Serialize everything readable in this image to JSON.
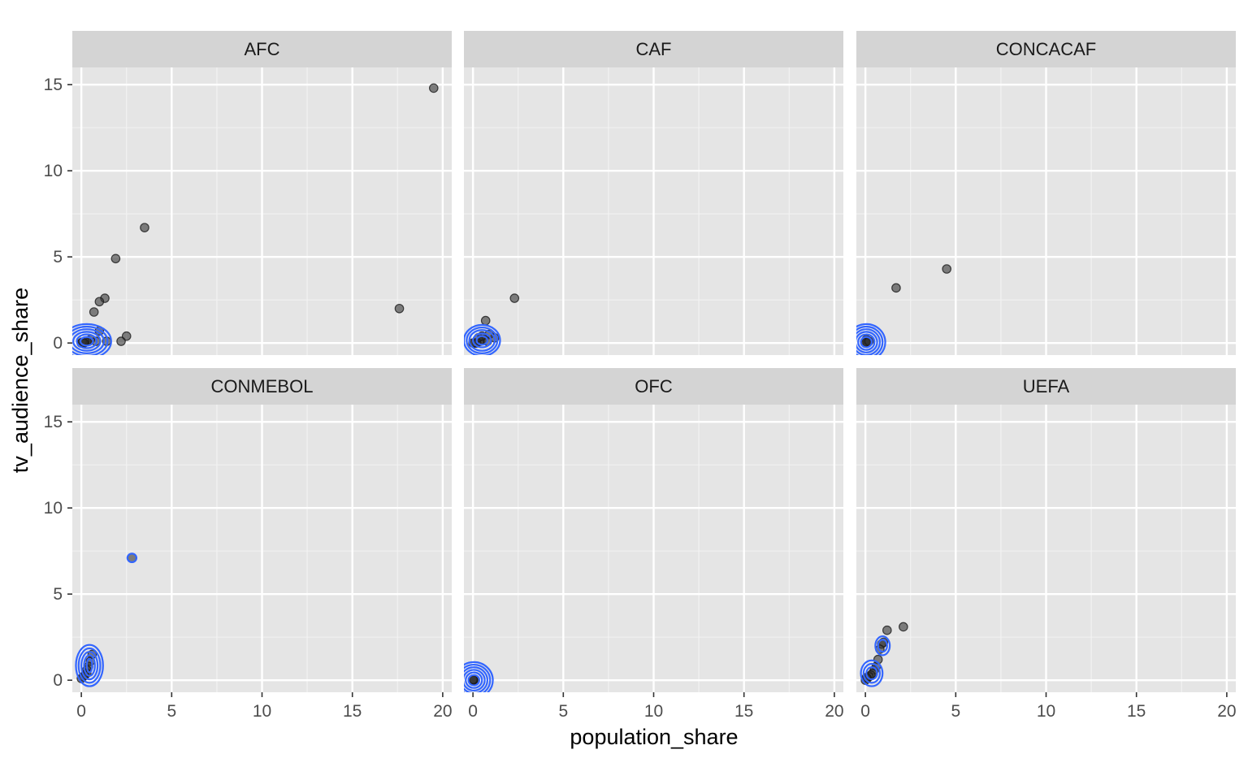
{
  "chart_data": {
    "type": "scatter",
    "facet_by": "confederation",
    "facet_layout": "2 rows x 3 columns",
    "xlabel": "population_share",
    "ylabel": "tv_audience_share",
    "xlim": [
      -0.5,
      20.5
    ],
    "ylim": [
      -0.7,
      16.0
    ],
    "x_ticks": [
      0,
      5,
      10,
      15,
      20
    ],
    "y_ticks": [
      0,
      5,
      10,
      15
    ],
    "grid": true,
    "point_color": "#333333",
    "density_contour_color": "#3366ff",
    "panel_background": "#e5e5e5",
    "strip_background": "#d4d4d4",
    "panels": [
      {
        "label": "AFC",
        "points": [
          [
            19.5,
            14.8
          ],
          [
            3.5,
            6.7
          ],
          [
            1.9,
            4.9
          ],
          [
            1.3,
            2.6
          ],
          [
            1.0,
            2.4
          ],
          [
            0.7,
            1.8
          ],
          [
            17.6,
            2.0
          ],
          [
            2.5,
            0.4
          ],
          [
            2.2,
            0.1
          ],
          [
            1.4,
            0.1
          ],
          [
            1.0,
            0.7
          ],
          [
            0.8,
            0.1
          ],
          [
            0.5,
            0.2
          ],
          [
            0.3,
            0.1
          ],
          [
            0.2,
            0.1
          ],
          [
            0.1,
            0.0
          ],
          [
            0.0,
            0.0
          ],
          [
            0.05,
            0.05
          ],
          [
            0.15,
            0.0
          ]
        ],
        "contours": [
          {
            "cx": 0.3,
            "cy": 0.1,
            "rx": [
              0.35,
              0.55,
              0.75,
              0.95,
              1.15,
              1.35
            ],
            "ry": [
              0.25,
              0.4,
              0.55,
              0.7,
              0.85,
              1.0
            ]
          }
        ]
      },
      {
        "label": "CAF",
        "points": [
          [
            2.3,
            2.6
          ],
          [
            0.7,
            1.3
          ],
          [
            1.2,
            0.3
          ],
          [
            0.9,
            0.5
          ],
          [
            0.6,
            0.2
          ],
          [
            0.4,
            0.1
          ],
          [
            0.2,
            0.0
          ],
          [
            0.1,
            0.0
          ],
          [
            0.0,
            0.0
          ],
          [
            0.3,
            0.3
          ],
          [
            0.8,
            0.1
          ],
          [
            0.5,
            0.4
          ]
        ],
        "contours": [
          {
            "cx": 0.5,
            "cy": 0.15,
            "rx": [
              0.3,
              0.5,
              0.7,
              0.85,
              1.0
            ],
            "ry": [
              0.25,
              0.4,
              0.6,
              0.75,
              0.9
            ]
          }
        ]
      },
      {
        "label": "CONCACAF",
        "points": [
          [
            4.5,
            4.3
          ],
          [
            1.7,
            3.2
          ],
          [
            0.1,
            0.1
          ],
          [
            0.0,
            0.0
          ],
          [
            0.05,
            0.2
          ],
          [
            0.1,
            0.0
          ],
          [
            0.0,
            0.05
          ],
          [
            0.2,
            0.1
          ]
        ],
        "contours": [
          {
            "cx": 0.05,
            "cy": 0.05,
            "rx": [
              0.3,
              0.45,
              0.6,
              0.75,
              0.9,
              1.05
            ],
            "ry": [
              0.3,
              0.45,
              0.6,
              0.75,
              0.9,
              1.05
            ]
          }
        ]
      },
      {
        "label": "CONMEBOL",
        "points": [
          [
            2.8,
            7.1
          ],
          [
            0.6,
            1.5
          ],
          [
            0.5,
            1.1
          ],
          [
            0.4,
            0.8
          ],
          [
            0.3,
            0.6
          ],
          [
            0.3,
            0.4
          ],
          [
            0.2,
            0.3
          ],
          [
            0.0,
            0.1
          ],
          [
            0.1,
            0.2
          ]
        ],
        "contours": [
          {
            "cx": 0.45,
            "cy": 0.85,
            "rx": [
              0.15,
              0.3,
              0.45,
              0.6,
              0.75
            ],
            "ry": [
              0.4,
              0.6,
              0.8,
              1.0,
              1.2
            ]
          },
          {
            "cx": 2.8,
            "cy": 7.1,
            "rx": [
              0.25
            ],
            "ry": [
              0.25
            ]
          }
        ]
      },
      {
        "label": "OFC",
        "points": [
          [
            0.0,
            0.0
          ],
          [
            0.05,
            0.02
          ],
          [
            0.02,
            0.0
          ],
          [
            0.0,
            0.05
          ]
        ],
        "contours": [
          {
            "cx": 0.05,
            "cy": 0.0,
            "rx": [
              0.3,
              0.45,
              0.6,
              0.75,
              0.9,
              1.05
            ],
            "ry": [
              0.3,
              0.45,
              0.6,
              0.75,
              0.9,
              1.05
            ]
          }
        ]
      },
      {
        "label": "UEFA",
        "points": [
          [
            2.1,
            3.1
          ],
          [
            1.2,
            2.9
          ],
          [
            1.0,
            2.2
          ],
          [
            0.9,
            2.1
          ],
          [
            0.8,
            1.8
          ],
          [
            0.7,
            1.2
          ],
          [
            0.6,
            0.8
          ],
          [
            0.5,
            0.6
          ],
          [
            0.4,
            0.4
          ],
          [
            0.3,
            0.3
          ],
          [
            0.2,
            0.2
          ],
          [
            0.1,
            0.1
          ],
          [
            0.0,
            0.0
          ],
          [
            0.05,
            0.15
          ]
        ],
        "contours": [
          {
            "cx": 0.35,
            "cy": 0.4,
            "rx": [
              0.3,
              0.45,
              0.6
            ],
            "ry": [
              0.35,
              0.55,
              0.75
            ]
          },
          {
            "cx": 0.95,
            "cy": 2.0,
            "rx": [
              0.25,
              0.4
            ],
            "ry": [
              0.35,
              0.55
            ]
          }
        ]
      }
    ]
  }
}
